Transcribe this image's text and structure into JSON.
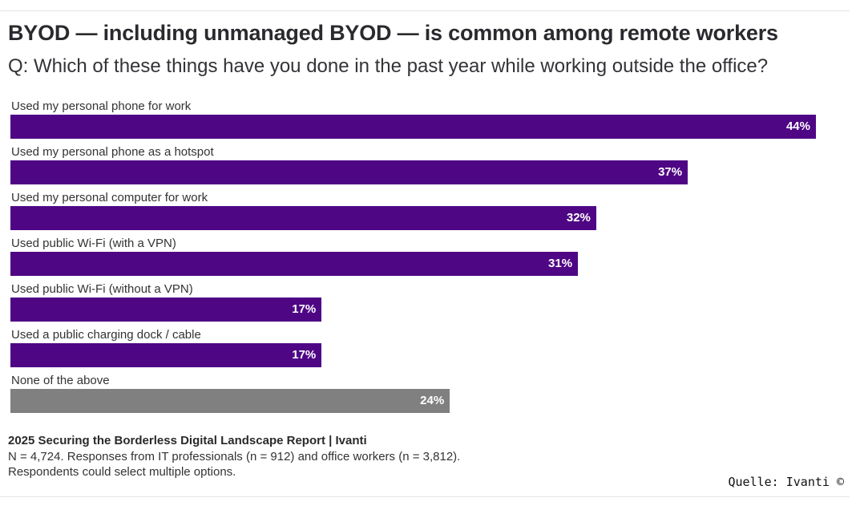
{
  "header": {
    "title": "BYOD — including unmanaged BYOD — is common among remote workers",
    "subtitle": "Q: Which of these things have you done in the past year while working outside the office?"
  },
  "colors": {
    "primary_bar": "#4e0685",
    "neutral_bar": "#808080",
    "value_label": "#ffffff"
  },
  "chart_data": {
    "type": "bar",
    "orientation": "horizontal",
    "title": "BYOD — including unmanaged BYOD — is common among remote workers",
    "subtitle": "Q: Which of these things have you done in the past year while working outside the office?",
    "xlabel": "",
    "ylabel": "",
    "unit": "%",
    "xlim": [
      0,
      45
    ],
    "grid": false,
    "legend": "none",
    "categories": [
      "Used my personal phone for work",
      "Used my personal phone as a hotspot",
      "Used my personal computer for work",
      "Used public Wi-Fi (with a VPN)",
      "Used public Wi-Fi (without a VPN)",
      "Used a public charging dock / cable",
      "None of the above"
    ],
    "values": [
      44,
      37,
      32,
      31,
      17,
      17,
      24
    ],
    "value_labels": [
      "44%",
      "37%",
      "32%",
      "31%",
      "17%",
      "17%",
      "24%"
    ],
    "bar_colors": [
      "primary",
      "primary",
      "primary",
      "primary",
      "primary",
      "primary",
      "neutral"
    ]
  },
  "footer": {
    "source": "2025 Securing the Borderless Digital Landscape Report | Ivanti",
    "note1": "N = 4,724. Responses from IT professionals (n = 912) and office workers (n = 3,812).",
    "note2": "Respondents could select multiple options.",
    "credit": "Quelle: Ivanti  ©"
  }
}
